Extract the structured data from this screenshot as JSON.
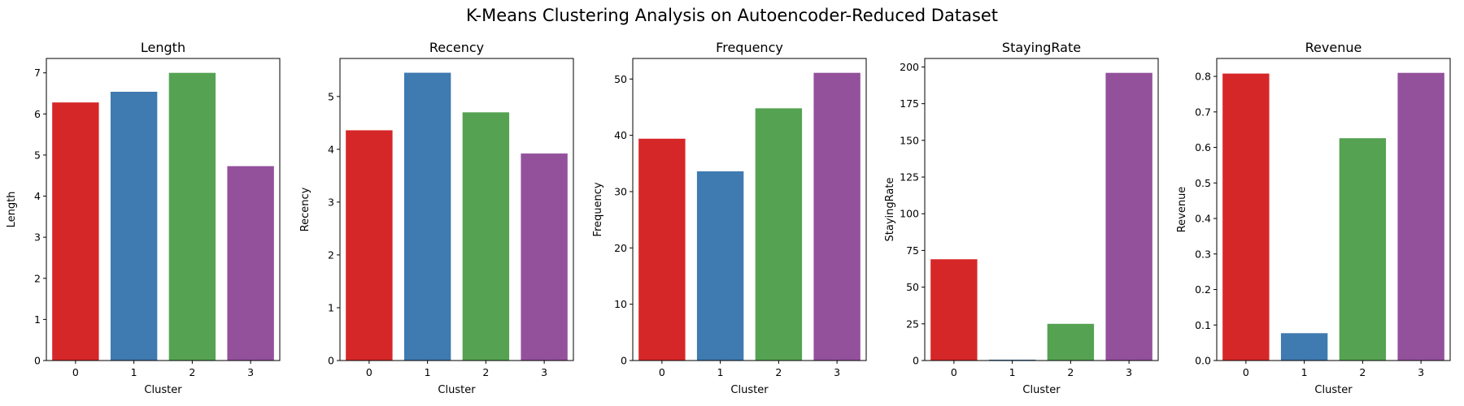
{
  "figure": {
    "title": "K-Means Clustering Analysis on Autoencoder-Reduced Dataset"
  },
  "palette": [
    "#d62728",
    "#3f7ab0",
    "#55a352",
    "#93519c"
  ],
  "chart_data": [
    {
      "type": "bar",
      "title": "Length",
      "xlabel": "Cluster",
      "ylabel": "Length",
      "categories": [
        "0",
        "1",
        "2",
        "3"
      ],
      "values": [
        6.28,
        6.54,
        7.0,
        4.73
      ],
      "ylim": [
        0,
        7.35
      ],
      "yticks": [
        0,
        1,
        2,
        3,
        4,
        5,
        6,
        7
      ],
      "ytick_labels": [
        "0",
        "1",
        "2",
        "3",
        "4",
        "5",
        "6",
        "7"
      ]
    },
    {
      "type": "bar",
      "title": "Recency",
      "xlabel": "Cluster",
      "ylabel": "Recency",
      "categories": [
        "0",
        "1",
        "2",
        "3"
      ],
      "values": [
        4.36,
        5.45,
        4.7,
        3.92
      ],
      "ylim": [
        0,
        5.72
      ],
      "yticks": [
        0,
        1,
        2,
        3,
        4,
        5
      ],
      "ytick_labels": [
        "0",
        "1",
        "2",
        "3",
        "4",
        "5"
      ]
    },
    {
      "type": "bar",
      "title": "Frequency",
      "xlabel": "Cluster",
      "ylabel": "Frequency",
      "categories": [
        "0",
        "1",
        "2",
        "3"
      ],
      "values": [
        39.4,
        33.6,
        44.8,
        51.1
      ],
      "ylim": [
        0,
        53.65
      ],
      "yticks": [
        0,
        10,
        20,
        30,
        40,
        50
      ],
      "ytick_labels": [
        "0",
        "10",
        "20",
        "30",
        "40",
        "50"
      ]
    },
    {
      "type": "bar",
      "title": "StayingRate",
      "xlabel": "Cluster",
      "ylabel": "StayingRate",
      "categories": [
        "0",
        "1",
        "2",
        "3"
      ],
      "values": [
        69,
        0.6,
        25,
        196
      ],
      "ylim": [
        0,
        205.8
      ],
      "yticks": [
        0,
        25,
        50,
        75,
        100,
        125,
        150,
        175,
        200
      ],
      "ytick_labels": [
        "0",
        "25",
        "50",
        "75",
        "100",
        "125",
        "150",
        "175",
        "200"
      ]
    },
    {
      "type": "bar",
      "title": "Revenue",
      "xlabel": "Cluster",
      "ylabel": "Revenue",
      "categories": [
        "0",
        "1",
        "2",
        "3"
      ],
      "values": [
        0.808,
        0.077,
        0.626,
        0.81
      ],
      "ylim": [
        0,
        0.8505
      ],
      "yticks": [
        0,
        0.1,
        0.2,
        0.3,
        0.4,
        0.5,
        0.6,
        0.7,
        0.8
      ],
      "ytick_labels": [
        "0.0",
        "0.1",
        "0.2",
        "0.3",
        "0.4",
        "0.5",
        "0.6",
        "0.7",
        "0.8"
      ]
    }
  ]
}
